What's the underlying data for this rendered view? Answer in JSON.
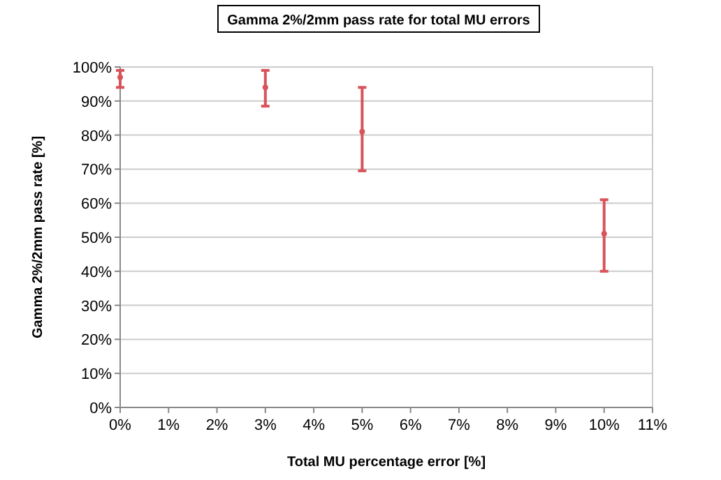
{
  "chart_data": {
    "type": "scatter",
    "title": "Gamma 2%/2mm pass rate for total MU errors",
    "xlabel": "Total MU percentage error [%]",
    "ylabel": "Gamma 2%/2mm pass rate [%]",
    "x": [
      0,
      3,
      5,
      10
    ],
    "values": [
      97,
      94,
      81,
      51
    ],
    "errors": [
      [
        94,
        99
      ],
      [
        88.5,
        99
      ],
      [
        69.5,
        94
      ],
      [
        40,
        61
      ]
    ],
    "color": "#d9545a",
    "marker": "circle",
    "grid": "y",
    "xlim": [
      0,
      11
    ],
    "xticks": [
      {
        "value": 0,
        "label": "0%"
      },
      {
        "value": 1,
        "label": "1%"
      },
      {
        "value": 2,
        "label": "2%"
      },
      {
        "value": 3,
        "label": "3%"
      },
      {
        "value": 4,
        "label": "4%"
      },
      {
        "value": 5,
        "label": "5%"
      },
      {
        "value": 6,
        "label": "6%"
      },
      {
        "value": 7,
        "label": "7%"
      },
      {
        "value": 8,
        "label": "8%"
      },
      {
        "value": 9,
        "label": "9%"
      },
      {
        "value": 10,
        "label": "10%"
      },
      {
        "value": 11,
        "label": "11%"
      }
    ],
    "ylim": [
      0,
      100
    ],
    "yticks": [
      {
        "value": 0,
        "label": "0%"
      },
      {
        "value": 10,
        "label": "10%"
      },
      {
        "value": 20,
        "label": "20%"
      },
      {
        "value": 30,
        "label": "30%"
      },
      {
        "value": 40,
        "label": "40%"
      },
      {
        "value": 50,
        "label": "50%"
      },
      {
        "value": 60,
        "label": "60%"
      },
      {
        "value": 70,
        "label": "70%"
      },
      {
        "value": 80,
        "label": "80%"
      },
      {
        "value": 90,
        "label": "90%"
      },
      {
        "value": 100,
        "label": "100%"
      }
    ]
  }
}
